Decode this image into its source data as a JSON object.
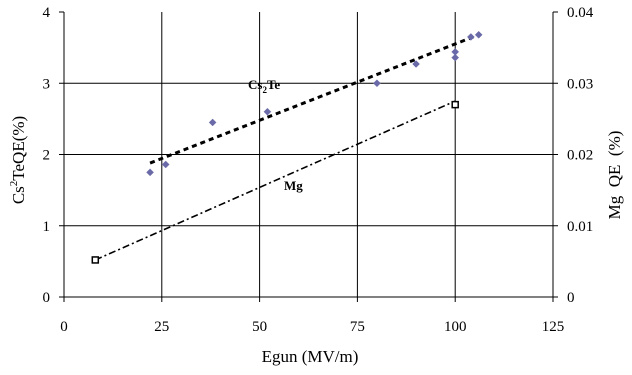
{
  "chart_data": {
    "type": "scatter",
    "xlabel": "Egun (MV/m)",
    "ylabel_left_parts": {
      "pre": "Cs",
      "sup": "2",
      "post": "TeQE(%)"
    },
    "ylabel_right": "Mg  QE  (%)",
    "x_ticks": [
      "0",
      "25",
      "50",
      "75",
      "100",
      "125"
    ],
    "y_left_ticks": [
      "0",
      "1",
      "2",
      "3",
      "4"
    ],
    "y_right_ticks": [
      "0",
      "0.01",
      "0.02",
      "0.03",
      "0.04"
    ],
    "xlim": [
      0,
      125
    ],
    "ylim_left": [
      0,
      4
    ],
    "ylim_right": [
      0,
      0.04
    ],
    "grid": true,
    "series": [
      {
        "name": "Cs2Te",
        "label_parts": {
          "pre": "Cs",
          "sub": "2",
          "post": "Te"
        },
        "axis": "left",
        "color": "#6a6aa8",
        "points": [
          [
            22,
            1.75
          ],
          [
            26,
            1.86
          ],
          [
            38,
            2.45
          ],
          [
            52,
            2.6
          ],
          [
            80,
            3.0
          ],
          [
            90,
            3.27
          ],
          [
            100,
            3.36
          ],
          [
            100,
            3.44
          ],
          [
            104,
            3.65
          ],
          [
            106,
            3.68
          ]
        ],
        "trend": {
          "x0": 22,
          "y0": 1.88,
          "x1": 106,
          "y1": 3.68
        }
      },
      {
        "name": "Mg",
        "label": "Mg",
        "axis": "right",
        "color": "#000000",
        "points": [
          [
            8,
            0.0052
          ],
          [
            100,
            0.027
          ]
        ],
        "trend": {
          "x0": 8,
          "y0": 0.0052,
          "x1": 100,
          "y1": 0.0275
        }
      }
    ]
  }
}
